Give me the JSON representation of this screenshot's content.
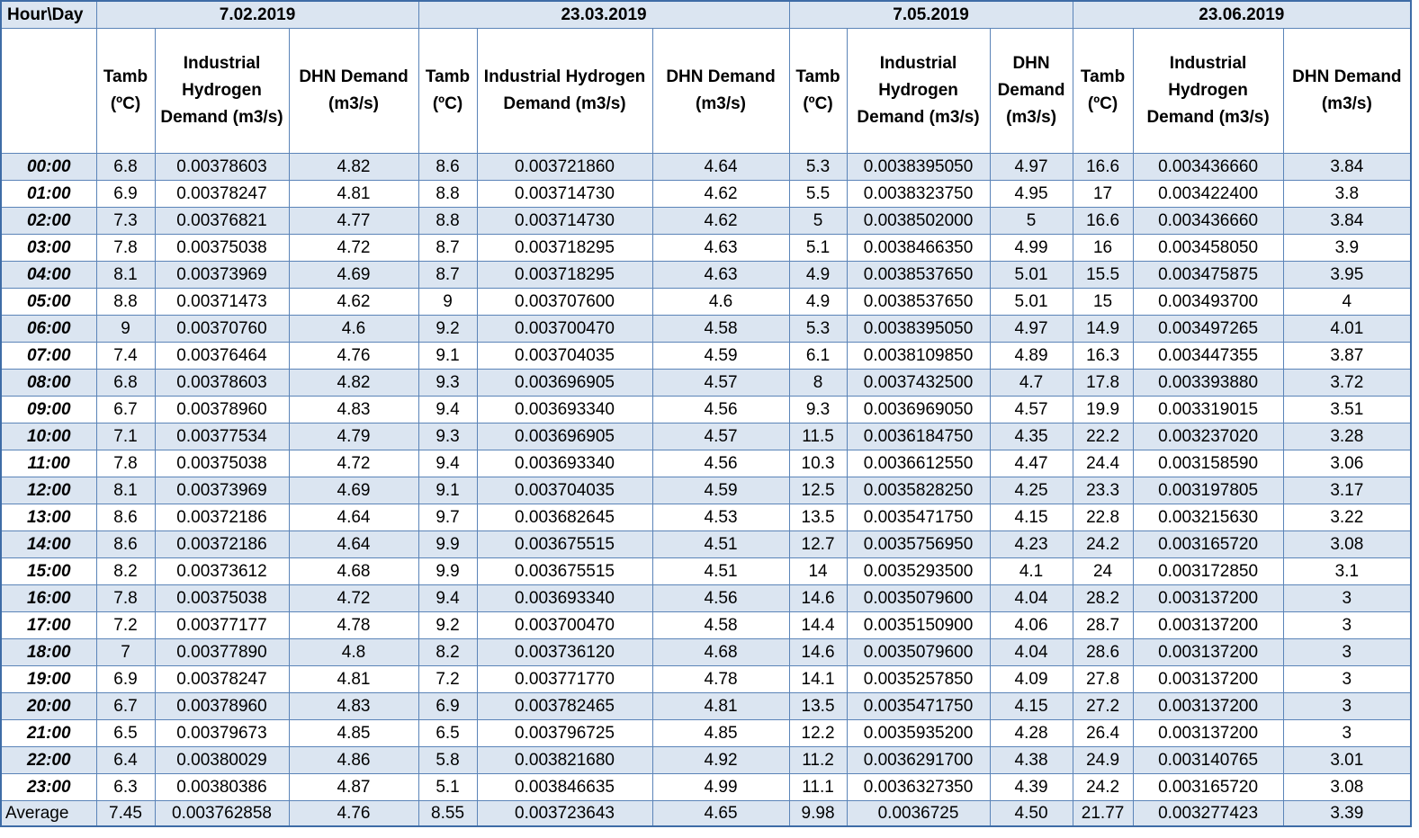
{
  "header": {
    "corner": "Hour\\Day",
    "days": [
      "7.02.2019",
      "23.03.2019",
      "7.05.2019",
      "23.06.2019"
    ],
    "columns": [
      {
        "tamb": "Tamb (ºC)",
        "ihd": "Industrial Hydrogen Demand (m3/s)",
        "dhn": "DHN Demand (m3/s)"
      },
      {
        "tamb": "Tamb (ºC)",
        "ihd": "Industrial Hydrogen Demand (m3/s)",
        "dhn": "DHN Demand (m3/s)"
      },
      {
        "tamb": "Tamb (ºC)",
        "ihd": "Industrial Hydrogen Demand (m3/s)",
        "dhn": "DHN Demand (m3/s)"
      },
      {
        "tamb": "Tamb (ºC)",
        "ihd": "Industrial Hydrogen Demand (m3/s)",
        "dhn": "DHN Demand (m3/s)"
      }
    ]
  },
  "rows": [
    [
      "00:00",
      "6.8",
      "0.00378603",
      "4.82",
      "8.6",
      "0.003721860",
      "4.64",
      "5.3",
      "0.0038395050",
      "4.97",
      "16.6",
      "0.003436660",
      "3.84"
    ],
    [
      "01:00",
      "6.9",
      "0.00378247",
      "4.81",
      "8.8",
      "0.003714730",
      "4.62",
      "5.5",
      "0.0038323750",
      "4.95",
      "17",
      "0.003422400",
      "3.8"
    ],
    [
      "02:00",
      "7.3",
      "0.00376821",
      "4.77",
      "8.8",
      "0.003714730",
      "4.62",
      "5",
      "0.0038502000",
      "5",
      "16.6",
      "0.003436660",
      "3.84"
    ],
    [
      "03:00",
      "7.8",
      "0.00375038",
      "4.72",
      "8.7",
      "0.003718295",
      "4.63",
      "5.1",
      "0.0038466350",
      "4.99",
      "16",
      "0.003458050",
      "3.9"
    ],
    [
      "04:00",
      "8.1",
      "0.00373969",
      "4.69",
      "8.7",
      "0.003718295",
      "4.63",
      "4.9",
      "0.0038537650",
      "5.01",
      "15.5",
      "0.003475875",
      "3.95"
    ],
    [
      "05:00",
      "8.8",
      "0.00371473",
      "4.62",
      "9",
      "0.003707600",
      "4.6",
      "4.9",
      "0.0038537650",
      "5.01",
      "15",
      "0.003493700",
      "4"
    ],
    [
      "06:00",
      "9",
      "0.00370760",
      "4.6",
      "9.2",
      "0.003700470",
      "4.58",
      "5.3",
      "0.0038395050",
      "4.97",
      "14.9",
      "0.003497265",
      "4.01"
    ],
    [
      "07:00",
      "7.4",
      "0.00376464",
      "4.76",
      "9.1",
      "0.003704035",
      "4.59",
      "6.1",
      "0.0038109850",
      "4.89",
      "16.3",
      "0.003447355",
      "3.87"
    ],
    [
      "08:00",
      "6.8",
      "0.00378603",
      "4.82",
      "9.3",
      "0.003696905",
      "4.57",
      "8",
      "0.0037432500",
      "4.7",
      "17.8",
      "0.003393880",
      "3.72"
    ],
    [
      "09:00",
      "6.7",
      "0.00378960",
      "4.83",
      "9.4",
      "0.003693340",
      "4.56",
      "9.3",
      "0.0036969050",
      "4.57",
      "19.9",
      "0.003319015",
      "3.51"
    ],
    [
      "10:00",
      "7.1",
      "0.00377534",
      "4.79",
      "9.3",
      "0.003696905",
      "4.57",
      "11.5",
      "0.0036184750",
      "4.35",
      "22.2",
      "0.003237020",
      "3.28"
    ],
    [
      "11:00",
      "7.8",
      "0.00375038",
      "4.72",
      "9.4",
      "0.003693340",
      "4.56",
      "10.3",
      "0.0036612550",
      "4.47",
      "24.4",
      "0.003158590",
      "3.06"
    ],
    [
      "12:00",
      "8.1",
      "0.00373969",
      "4.69",
      "9.1",
      "0.003704035",
      "4.59",
      "12.5",
      "0.0035828250",
      "4.25",
      "23.3",
      "0.003197805",
      "3.17"
    ],
    [
      "13:00",
      "8.6",
      "0.00372186",
      "4.64",
      "9.7",
      "0.003682645",
      "4.53",
      "13.5",
      "0.0035471750",
      "4.15",
      "22.8",
      "0.003215630",
      "3.22"
    ],
    [
      "14:00",
      "8.6",
      "0.00372186",
      "4.64",
      "9.9",
      "0.003675515",
      "4.51",
      "12.7",
      "0.0035756950",
      "4.23",
      "24.2",
      "0.003165720",
      "3.08"
    ],
    [
      "15:00",
      "8.2",
      "0.00373612",
      "4.68",
      "9.9",
      "0.003675515",
      "4.51",
      "14",
      "0.0035293500",
      "4.1",
      "24",
      "0.003172850",
      "3.1"
    ],
    [
      "16:00",
      "7.8",
      "0.00375038",
      "4.72",
      "9.4",
      "0.003693340",
      "4.56",
      "14.6",
      "0.0035079600",
      "4.04",
      "28.2",
      "0.003137200",
      "3"
    ],
    [
      "17:00",
      "7.2",
      "0.00377177",
      "4.78",
      "9.2",
      "0.003700470",
      "4.58",
      "14.4",
      "0.0035150900",
      "4.06",
      "28.7",
      "0.003137200",
      "3"
    ],
    [
      "18:00",
      "7",
      "0.00377890",
      "4.8",
      "8.2",
      "0.003736120",
      "4.68",
      "14.6",
      "0.0035079600",
      "4.04",
      "28.6",
      "0.003137200",
      "3"
    ],
    [
      "19:00",
      "6.9",
      "0.00378247",
      "4.81",
      "7.2",
      "0.003771770",
      "4.78",
      "14.1",
      "0.0035257850",
      "4.09",
      "27.8",
      "0.003137200",
      "3"
    ],
    [
      "20:00",
      "6.7",
      "0.00378960",
      "4.83",
      "6.9",
      "0.003782465",
      "4.81",
      "13.5",
      "0.0035471750",
      "4.15",
      "27.2",
      "0.003137200",
      "3"
    ],
    [
      "21:00",
      "6.5",
      "0.00379673",
      "4.85",
      "6.5",
      "0.003796725",
      "4.85",
      "12.2",
      "0.0035935200",
      "4.28",
      "26.4",
      "0.003137200",
      "3"
    ],
    [
      "22:00",
      "6.4",
      "0.00380029",
      "4.86",
      "5.8",
      "0.003821680",
      "4.92",
      "11.2",
      "0.0036291700",
      "4.38",
      "24.9",
      "0.003140765",
      "3.01"
    ],
    [
      "23:00",
      "6.3",
      "0.00380386",
      "4.87",
      "5.1",
      "0.003846635",
      "4.99",
      "11.1",
      "0.0036327350",
      "4.39",
      "24.2",
      "0.003165720",
      "3.08"
    ]
  ],
  "average": [
    "Average",
    "7.45",
    "0.003762858",
    "4.76",
    "8.55",
    "0.003723643",
    "4.65",
    "9.98",
    "0.0036725",
    "4.50",
    "21.77",
    "0.003277423",
    "3.39"
  ]
}
